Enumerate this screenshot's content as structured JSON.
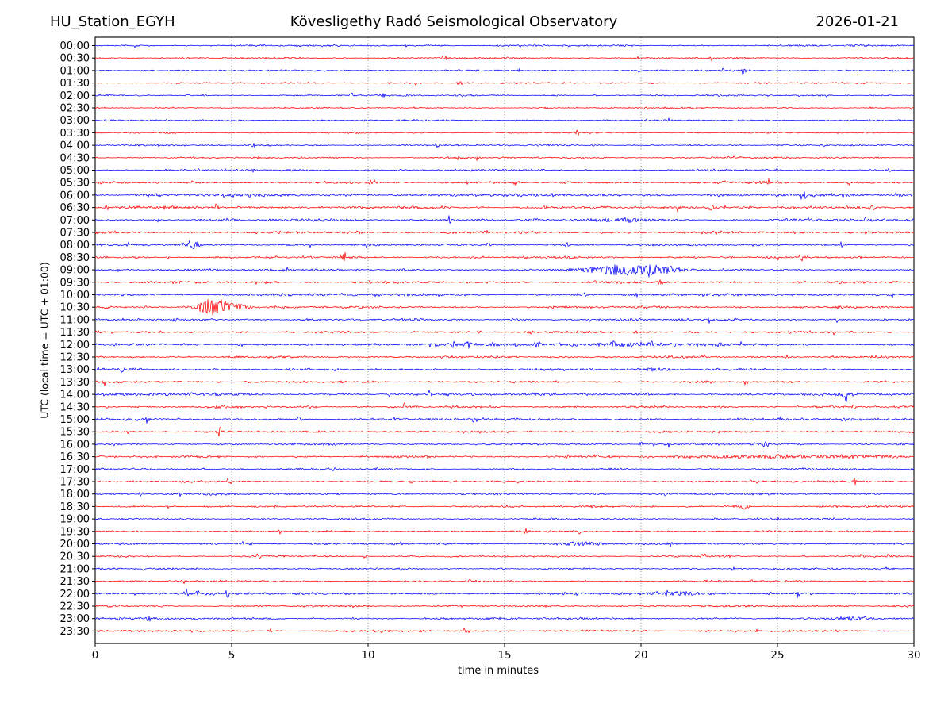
{
  "header": {
    "station": "HU_Station_EGYH",
    "title": "Kövesligethy Radó Seismological Observatory",
    "date": "2026-01-21"
  },
  "axes": {
    "xlabel": "time in minutes",
    "ylabel": "UTC (local time = UTC + 01:00)",
    "xticks": [
      0,
      5,
      10,
      15,
      20,
      25,
      30
    ],
    "xlim": [
      0,
      30
    ],
    "grid_minutes": [
      5,
      10,
      15,
      20,
      25
    ]
  },
  "colors": {
    "hour_trace": "#0000ff",
    "half_hour_trace": "#ff0000",
    "text": "#000000",
    "background": "#ffffff",
    "frame": "#000000",
    "grid": "#555555"
  },
  "chart_data": {
    "type": "line",
    "subtype": "helicorder-dayplot",
    "description": "24-hour seismogram drum plot: 48 half-hour traces of 30 minutes each, alternating blue (hh:00) and red (hh:30)",
    "minutes_per_line": 30,
    "rows": [
      {
        "label": "00:00",
        "color": "#0000ff",
        "noise": 1.2
      },
      {
        "label": "00:30",
        "color": "#ff0000",
        "noise": 1.2
      },
      {
        "label": "01:00",
        "color": "#0000ff",
        "noise": 1.1
      },
      {
        "label": "01:30",
        "color": "#ff0000",
        "noise": 1.1
      },
      {
        "label": "02:00",
        "color": "#0000ff",
        "noise": 1.1
      },
      {
        "label": "02:30",
        "color": "#ff0000",
        "noise": 1.0
      },
      {
        "label": "03:00",
        "color": "#0000ff",
        "noise": 1.1
      },
      {
        "label": "03:30",
        "color": "#ff0000",
        "noise": 1.0
      },
      {
        "label": "04:00",
        "color": "#0000ff",
        "noise": 1.1
      },
      {
        "label": "04:30",
        "color": "#ff0000",
        "noise": 1.1
      },
      {
        "label": "05:00",
        "color": "#0000ff",
        "noise": 1.3
      },
      {
        "label": "05:30",
        "color": "#ff0000",
        "noise": 1.5
      },
      {
        "label": "06:00",
        "color": "#0000ff",
        "noise": 2.1
      },
      {
        "label": "06:30",
        "color": "#ff0000",
        "noise": 1.9
      },
      {
        "label": "07:00",
        "color": "#0000ff",
        "noise": 1.8
      },
      {
        "label": "07:30",
        "color": "#ff0000",
        "noise": 1.7
      },
      {
        "label": "08:00",
        "color": "#0000ff",
        "noise": 1.5
      },
      {
        "label": "08:30",
        "color": "#ff0000",
        "noise": 1.5
      },
      {
        "label": "09:00",
        "color": "#0000ff",
        "noise": 1.5
      },
      {
        "label": "09:30",
        "color": "#ff0000",
        "noise": 1.5
      },
      {
        "label": "10:00",
        "color": "#0000ff",
        "noise": 1.8
      },
      {
        "label": "10:30",
        "color": "#ff0000",
        "noise": 1.6
      },
      {
        "label": "11:00",
        "color": "#0000ff",
        "noise": 1.5
      },
      {
        "label": "11:30",
        "color": "#ff0000",
        "noise": 1.5
      },
      {
        "label": "12:00",
        "color": "#0000ff",
        "noise": 1.6
      },
      {
        "label": "12:30",
        "color": "#ff0000",
        "noise": 1.5
      },
      {
        "label": "13:00",
        "color": "#0000ff",
        "noise": 1.5
      },
      {
        "label": "13:30",
        "color": "#ff0000",
        "noise": 1.5
      },
      {
        "label": "14:00",
        "color": "#0000ff",
        "noise": 1.8
      },
      {
        "label": "14:30",
        "color": "#ff0000",
        "noise": 1.5
      },
      {
        "label": "15:00",
        "color": "#0000ff",
        "noise": 1.6
      },
      {
        "label": "15:30",
        "color": "#ff0000",
        "noise": 1.4
      },
      {
        "label": "16:00",
        "color": "#0000ff",
        "noise": 1.4
      },
      {
        "label": "16:30",
        "color": "#ff0000",
        "noise": 1.5
      },
      {
        "label": "17:00",
        "color": "#0000ff",
        "noise": 1.3
      },
      {
        "label": "17:30",
        "color": "#ff0000",
        "noise": 1.3
      },
      {
        "label": "18:00",
        "color": "#0000ff",
        "noise": 1.4
      },
      {
        "label": "18:30",
        "color": "#ff0000",
        "noise": 1.3
      },
      {
        "label": "19:00",
        "color": "#0000ff",
        "noise": 1.2
      },
      {
        "label": "19:30",
        "color": "#ff0000",
        "noise": 1.2
      },
      {
        "label": "20:00",
        "color": "#0000ff",
        "noise": 1.3
      },
      {
        "label": "20:30",
        "color": "#ff0000",
        "noise": 1.2
      },
      {
        "label": "21:00",
        "color": "#0000ff",
        "noise": 1.2
      },
      {
        "label": "21:30",
        "color": "#ff0000",
        "noise": 1.3
      },
      {
        "label": "22:00",
        "color": "#0000ff",
        "noise": 1.7
      },
      {
        "label": "22:30",
        "color": "#ff0000",
        "noise": 1.4
      },
      {
        "label": "23:00",
        "color": "#0000ff",
        "noise": 1.5
      },
      {
        "label": "23:30",
        "color": "#ff0000",
        "noise": 1.4
      }
    ],
    "events": [
      {
        "row": "06:30",
        "type": "spike",
        "center": 28.5,
        "sigma": 0.08,
        "amp": 3.5
      },
      {
        "row": "07:00",
        "type": "burst",
        "center": 19.5,
        "sigma": 0.8,
        "amp": 2.2
      },
      {
        "row": "08:00",
        "type": "burst",
        "center": 3.55,
        "sigma": 0.18,
        "amp": 6.0
      },
      {
        "row": "09:00",
        "type": "burst",
        "center": 19.3,
        "sigma": 1.1,
        "amp": 6.5
      },
      {
        "row": "09:00",
        "type": "burst",
        "center": 20.9,
        "sigma": 0.5,
        "amp": 3.0
      },
      {
        "row": "10:30",
        "type": "burst",
        "center": 4.35,
        "sigma": 0.4,
        "amp": 13.0
      },
      {
        "row": "10:30",
        "type": "burst",
        "center": 5.2,
        "sigma": 0.35,
        "amp": 4.0
      },
      {
        "row": "12:00",
        "type": "spike_train",
        "start": 12.5,
        "end": 23.3,
        "spacing": 0.6,
        "amp": 5.5
      },
      {
        "row": "12:00",
        "type": "elevated",
        "start": 12.5,
        "end": 23.3,
        "amp": 0.8
      },
      {
        "row": "13:00",
        "type": "burst",
        "center": 20.6,
        "sigma": 0.35,
        "amp": 3.0
      },
      {
        "row": "16:30",
        "type": "elevated",
        "start": 21.0,
        "end": 30.0,
        "amp": 1.3
      },
      {
        "row": "18:30",
        "type": "spike",
        "center": 23.8,
        "sigma": 0.1,
        "amp": 3.5
      },
      {
        "row": "20:00",
        "type": "burst",
        "center": 17.8,
        "sigma": 0.6,
        "amp": 2.8
      },
      {
        "row": "22:00",
        "type": "burst",
        "center": 21.3,
        "sigma": 0.5,
        "amp": 2.5
      },
      {
        "row": "23:00",
        "type": "burst",
        "center": 27.8,
        "sigma": 0.4,
        "amp": 2.2
      }
    ]
  }
}
